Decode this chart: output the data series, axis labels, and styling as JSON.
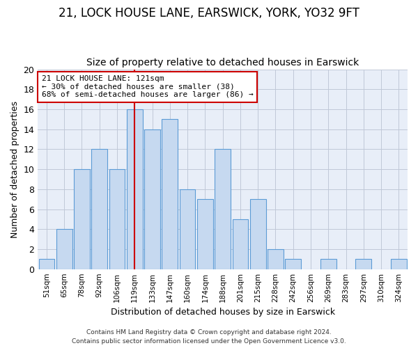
{
  "title1": "21, LOCK HOUSE LANE, EARSWICK, YORK, YO32 9FT",
  "title2": "Size of property relative to detached houses in Earswick",
  "xlabel": "Distribution of detached houses by size in Earswick",
  "ylabel": "Number of detached properties",
  "bar_labels": [
    "51sqm",
    "65sqm",
    "78sqm",
    "92sqm",
    "106sqm",
    "119sqm",
    "133sqm",
    "147sqm",
    "160sqm",
    "174sqm",
    "188sqm",
    "201sqm",
    "215sqm",
    "228sqm",
    "242sqm",
    "256sqm",
    "269sqm",
    "283sqm",
    "297sqm",
    "310sqm",
    "324sqm"
  ],
  "bar_values": [
    1,
    4,
    10,
    12,
    10,
    16,
    14,
    15,
    8,
    7,
    12,
    5,
    7,
    2,
    1,
    0,
    1,
    0,
    1,
    0,
    1
  ],
  "bar_color": "#c6d9f0",
  "bar_edge_color": "#5b9bd5",
  "vline_x_index": 5,
  "vline_color": "#cc0000",
  "annotation_line1": "21 LOCK HOUSE LANE: 121sqm",
  "annotation_line2": "← 30% of detached houses are smaller (38)",
  "annotation_line3": "68% of semi-detached houses are larger (86) →",
  "annotation_box_color": "#cc0000",
  "ylim": [
    0,
    20
  ],
  "yticks": [
    0,
    2,
    4,
    6,
    8,
    10,
    12,
    14,
    16,
    18,
    20
  ],
  "footer1": "Contains HM Land Registry data © Crown copyright and database right 2024.",
  "footer2": "Contains public sector information licensed under the Open Government Licence v3.0.",
  "background_color": "#ffffff",
  "plot_bg_color": "#e8eef8",
  "grid_color": "#c0c8d8",
  "title1_fontsize": 12,
  "title2_fontsize": 10
}
